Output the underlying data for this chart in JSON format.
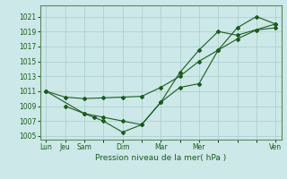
{
  "title": "",
  "xlabel": "Pression niveau de la mer( hPa )",
  "ylabel": "",
  "bg_color": "#cce8e8",
  "grid_color": "#aacccc",
  "line_color": "#1a5c1a",
  "ylim": [
    1004.5,
    1022.5
  ],
  "yticks": [
    1005,
    1007,
    1009,
    1011,
    1013,
    1015,
    1017,
    1019,
    1021
  ],
  "x_label_show": [
    0,
    1,
    2,
    4,
    6,
    8,
    12
  ],
  "x_label_names": [
    "Lun",
    "Jeu",
    "Sam",
    "Dim",
    "Mar",
    "Mer",
    "Ven"
  ],
  "line1": {
    "x": [
      0,
      1,
      2,
      3,
      4,
      5,
      6,
      7,
      8,
      9,
      10,
      11,
      12
    ],
    "y": [
      1011,
      1010.2,
      1010.0,
      1010.1,
      1010.2,
      1010.3,
      1011.5,
      1013.0,
      1015.0,
      1016.5,
      1018.0,
      1019.2,
      1019.5
    ]
  },
  "line2": {
    "x": [
      0,
      2,
      3,
      4,
      5,
      6,
      7,
      8,
      9,
      10,
      11,
      12
    ],
    "y": [
      1011,
      1008.0,
      1007.5,
      1007.0,
      1006.5,
      1009.5,
      1011.5,
      1012.0,
      1016.5,
      1019.5,
      1021.0,
      1020.0
    ]
  },
  "line3": {
    "x": [
      1,
      2,
      2.5,
      3,
      4,
      5,
      6,
      7,
      8,
      9,
      10,
      12
    ],
    "y": [
      1009,
      1008.0,
      1007.5,
      1007.0,
      1005.5,
      1006.5,
      1009.5,
      1013.5,
      1016.5,
      1019.0,
      1018.5,
      1020.0
    ]
  }
}
